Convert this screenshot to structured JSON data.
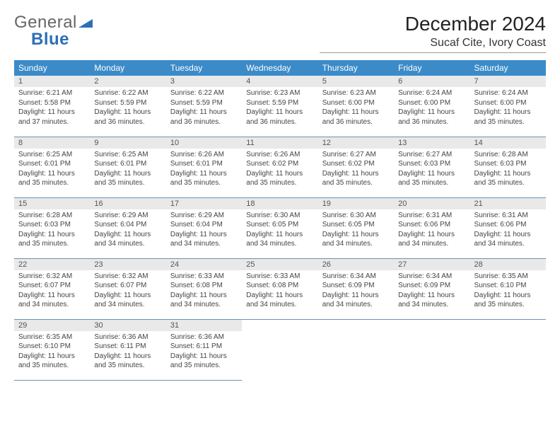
{
  "logo": {
    "text_general": "General",
    "text_blue": "Blue"
  },
  "title": "December 2024",
  "location": "Sucaf Cite, Ivory Coast",
  "colors": {
    "header_bg": "#3b8bc9",
    "header_fg": "#ffffff",
    "daynum_bg": "#e9e9e9",
    "row_border": "#6a93b8",
    "logo_blue": "#2d6fb5"
  },
  "weekdays": [
    "Sunday",
    "Monday",
    "Tuesday",
    "Wednesday",
    "Thursday",
    "Friday",
    "Saturday"
  ],
  "weeks": [
    [
      {
        "n": "1",
        "sr": "Sunrise: 6:21 AM",
        "ss": "Sunset: 5:58 PM",
        "dl": "Daylight: 11 hours and 37 minutes."
      },
      {
        "n": "2",
        "sr": "Sunrise: 6:22 AM",
        "ss": "Sunset: 5:59 PM",
        "dl": "Daylight: 11 hours and 36 minutes."
      },
      {
        "n": "3",
        "sr": "Sunrise: 6:22 AM",
        "ss": "Sunset: 5:59 PM",
        "dl": "Daylight: 11 hours and 36 minutes."
      },
      {
        "n": "4",
        "sr": "Sunrise: 6:23 AM",
        "ss": "Sunset: 5:59 PM",
        "dl": "Daylight: 11 hours and 36 minutes."
      },
      {
        "n": "5",
        "sr": "Sunrise: 6:23 AM",
        "ss": "Sunset: 6:00 PM",
        "dl": "Daylight: 11 hours and 36 minutes."
      },
      {
        "n": "6",
        "sr": "Sunrise: 6:24 AM",
        "ss": "Sunset: 6:00 PM",
        "dl": "Daylight: 11 hours and 36 minutes."
      },
      {
        "n": "7",
        "sr": "Sunrise: 6:24 AM",
        "ss": "Sunset: 6:00 PM",
        "dl": "Daylight: 11 hours and 35 minutes."
      }
    ],
    [
      {
        "n": "8",
        "sr": "Sunrise: 6:25 AM",
        "ss": "Sunset: 6:01 PM",
        "dl": "Daylight: 11 hours and 35 minutes."
      },
      {
        "n": "9",
        "sr": "Sunrise: 6:25 AM",
        "ss": "Sunset: 6:01 PM",
        "dl": "Daylight: 11 hours and 35 minutes."
      },
      {
        "n": "10",
        "sr": "Sunrise: 6:26 AM",
        "ss": "Sunset: 6:01 PM",
        "dl": "Daylight: 11 hours and 35 minutes."
      },
      {
        "n": "11",
        "sr": "Sunrise: 6:26 AM",
        "ss": "Sunset: 6:02 PM",
        "dl": "Daylight: 11 hours and 35 minutes."
      },
      {
        "n": "12",
        "sr": "Sunrise: 6:27 AM",
        "ss": "Sunset: 6:02 PM",
        "dl": "Daylight: 11 hours and 35 minutes."
      },
      {
        "n": "13",
        "sr": "Sunrise: 6:27 AM",
        "ss": "Sunset: 6:03 PM",
        "dl": "Daylight: 11 hours and 35 minutes."
      },
      {
        "n": "14",
        "sr": "Sunrise: 6:28 AM",
        "ss": "Sunset: 6:03 PM",
        "dl": "Daylight: 11 hours and 35 minutes."
      }
    ],
    [
      {
        "n": "15",
        "sr": "Sunrise: 6:28 AM",
        "ss": "Sunset: 6:03 PM",
        "dl": "Daylight: 11 hours and 35 minutes."
      },
      {
        "n": "16",
        "sr": "Sunrise: 6:29 AM",
        "ss": "Sunset: 6:04 PM",
        "dl": "Daylight: 11 hours and 34 minutes."
      },
      {
        "n": "17",
        "sr": "Sunrise: 6:29 AM",
        "ss": "Sunset: 6:04 PM",
        "dl": "Daylight: 11 hours and 34 minutes."
      },
      {
        "n": "18",
        "sr": "Sunrise: 6:30 AM",
        "ss": "Sunset: 6:05 PM",
        "dl": "Daylight: 11 hours and 34 minutes."
      },
      {
        "n": "19",
        "sr": "Sunrise: 6:30 AM",
        "ss": "Sunset: 6:05 PM",
        "dl": "Daylight: 11 hours and 34 minutes."
      },
      {
        "n": "20",
        "sr": "Sunrise: 6:31 AM",
        "ss": "Sunset: 6:06 PM",
        "dl": "Daylight: 11 hours and 34 minutes."
      },
      {
        "n": "21",
        "sr": "Sunrise: 6:31 AM",
        "ss": "Sunset: 6:06 PM",
        "dl": "Daylight: 11 hours and 34 minutes."
      }
    ],
    [
      {
        "n": "22",
        "sr": "Sunrise: 6:32 AM",
        "ss": "Sunset: 6:07 PM",
        "dl": "Daylight: 11 hours and 34 minutes."
      },
      {
        "n": "23",
        "sr": "Sunrise: 6:32 AM",
        "ss": "Sunset: 6:07 PM",
        "dl": "Daylight: 11 hours and 34 minutes."
      },
      {
        "n": "24",
        "sr": "Sunrise: 6:33 AM",
        "ss": "Sunset: 6:08 PM",
        "dl": "Daylight: 11 hours and 34 minutes."
      },
      {
        "n": "25",
        "sr": "Sunrise: 6:33 AM",
        "ss": "Sunset: 6:08 PM",
        "dl": "Daylight: 11 hours and 34 minutes."
      },
      {
        "n": "26",
        "sr": "Sunrise: 6:34 AM",
        "ss": "Sunset: 6:09 PM",
        "dl": "Daylight: 11 hours and 34 minutes."
      },
      {
        "n": "27",
        "sr": "Sunrise: 6:34 AM",
        "ss": "Sunset: 6:09 PM",
        "dl": "Daylight: 11 hours and 34 minutes."
      },
      {
        "n": "28",
        "sr": "Sunrise: 6:35 AM",
        "ss": "Sunset: 6:10 PM",
        "dl": "Daylight: 11 hours and 35 minutes."
      }
    ],
    [
      {
        "n": "29",
        "sr": "Sunrise: 6:35 AM",
        "ss": "Sunset: 6:10 PM",
        "dl": "Daylight: 11 hours and 35 minutes."
      },
      {
        "n": "30",
        "sr": "Sunrise: 6:36 AM",
        "ss": "Sunset: 6:11 PM",
        "dl": "Daylight: 11 hours and 35 minutes."
      },
      {
        "n": "31",
        "sr": "Sunrise: 6:36 AM",
        "ss": "Sunset: 6:11 PM",
        "dl": "Daylight: 11 hours and 35 minutes."
      },
      null,
      null,
      null,
      null
    ]
  ]
}
